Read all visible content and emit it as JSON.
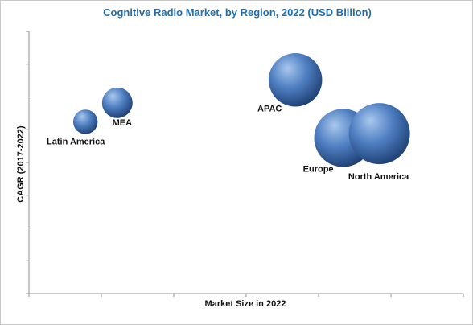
{
  "colors": {
    "title": "#1f6fb2",
    "axis": "#8c8c8c",
    "bubble_light": "#a9c8ee",
    "bubble_mid": "#4f7fc2",
    "bubble_dark": "#1e3f73"
  },
  "chart_data": {
    "type": "scatter",
    "title": "Cognitive Radio Market, by Region, 2022 (USD Billion)",
    "xlabel": "Market Size in 2022",
    "ylabel": "CAGR (2017-2022)",
    "xlim": [
      0,
      6
    ],
    "ylim": [
      0,
      8
    ],
    "grid": false,
    "tick_labels_shown": false,
    "points": [
      {
        "label": "Latin America",
        "x": 0.78,
        "y": 5.24,
        "size": 1.6
      },
      {
        "label": "MEA",
        "x": 1.22,
        "y": 5.82,
        "size": 2.0
      },
      {
        "label": "APAC",
        "x": 3.68,
        "y": 6.52,
        "size": 3.5
      },
      {
        "label": "Europe",
        "x": 4.34,
        "y": 4.75,
        "size": 3.8
      },
      {
        "label": "North America",
        "x": 4.84,
        "y": 4.88,
        "size": 4.0
      }
    ]
  }
}
